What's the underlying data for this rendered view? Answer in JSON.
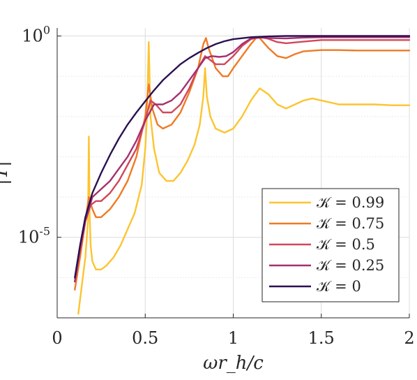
{
  "chart_data": {
    "type": "line",
    "title": "",
    "xlabel": "ωr_h/c",
    "ylabel": "|T|",
    "xlim": [
      0,
      2
    ],
    "ylim_log10": [
      -7,
      0.2
    ],
    "yscale": "log",
    "grid": true,
    "legend_placement": "bottom-right",
    "x_ticks": [
      {
        "value": 0,
        "label": "0"
      },
      {
        "value": 0.5,
        "label": "0.5"
      },
      {
        "value": 1,
        "label": "1"
      },
      {
        "value": 1.5,
        "label": "1.5"
      },
      {
        "value": 2,
        "label": "2"
      }
    ],
    "y_ticks": [
      {
        "log10": 0,
        "base": "10",
        "exp": "0"
      },
      {
        "log10": -5,
        "base": "10",
        "exp": "-5"
      }
    ],
    "series": [
      {
        "name": "𝒦 = 0.99",
        "color": "#fcc42f",
        "x": [
          0.12,
          0.14,
          0.16,
          0.175,
          0.18,
          0.185,
          0.19,
          0.2,
          0.22,
          0.25,
          0.28,
          0.32,
          0.36,
          0.4,
          0.44,
          0.48,
          0.5,
          0.51,
          0.52,
          0.53,
          0.55,
          0.58,
          0.62,
          0.66,
          0.7,
          0.74,
          0.78,
          0.81,
          0.83,
          0.84,
          0.85,
          0.87,
          0.9,
          0.95,
          1.0,
          1.05,
          1.1,
          1.15,
          1.2,
          1.25,
          1.3,
          1.35,
          1.4,
          1.45,
          1.5,
          1.6,
          1.7,
          1.8,
          1.9,
          2.0
        ],
        "y_log10": [
          -6.9,
          -6.2,
          -5.5,
          -4.6,
          -2.5,
          -4.5,
          -5.2,
          -5.6,
          -5.8,
          -5.8,
          -5.7,
          -5.5,
          -5.2,
          -4.8,
          -4.4,
          -3.7,
          -2.8,
          -2.0,
          -0.15,
          -2.0,
          -2.8,
          -3.4,
          -3.6,
          -3.6,
          -3.4,
          -3.1,
          -2.7,
          -2.2,
          -1.5,
          -0.8,
          -1.5,
          -2.0,
          -2.3,
          -2.4,
          -2.3,
          -2.0,
          -1.6,
          -1.3,
          -1.45,
          -1.7,
          -1.8,
          -1.7,
          -1.6,
          -1.55,
          -1.6,
          -1.7,
          -1.7,
          -1.7,
          -1.72,
          -1.72
        ]
      },
      {
        "name": "𝒦 = 0.75",
        "color": "#ef7a23",
        "x": [
          0.1,
          0.13,
          0.16,
          0.18,
          0.2,
          0.22,
          0.25,
          0.3,
          0.35,
          0.4,
          0.45,
          0.5,
          0.52,
          0.54,
          0.57,
          0.6,
          0.65,
          0.7,
          0.75,
          0.8,
          0.83,
          0.845,
          0.86,
          0.9,
          0.94,
          0.97,
          1.0,
          1.05,
          1.1,
          1.13,
          1.15,
          1.17,
          1.2,
          1.25,
          1.3,
          1.35,
          1.4,
          1.5,
          1.6,
          1.7,
          1.8,
          1.9,
          2.0
        ],
        "y_log10": [
          -6.3,
          -5.5,
          -4.6,
          -4.0,
          -4.3,
          -4.5,
          -4.5,
          -4.3,
          -4.0,
          -3.6,
          -3.0,
          -2.0,
          -1.2,
          -1.8,
          -2.2,
          -2.3,
          -2.2,
          -1.9,
          -1.4,
          -0.8,
          -0.2,
          -0.05,
          -0.3,
          -0.8,
          -1.0,
          -1.0,
          -0.8,
          -0.5,
          -0.2,
          -0.05,
          -0.05,
          -0.15,
          -0.3,
          -0.5,
          -0.55,
          -0.45,
          -0.38,
          -0.35,
          -0.35,
          -0.36,
          -0.36,
          -0.36,
          -0.36
        ]
      },
      {
        "name": "𝒦 = 0.5",
        "color": "#d2475b",
        "x": [
          0.1,
          0.13,
          0.16,
          0.19,
          0.22,
          0.25,
          0.3,
          0.35,
          0.4,
          0.45,
          0.5,
          0.53,
          0.56,
          0.6,
          0.65,
          0.7,
          0.75,
          0.8,
          0.84,
          0.87,
          0.9,
          0.95,
          1.0,
          1.05,
          1.1,
          1.15,
          1.2,
          1.25,
          1.3,
          1.4,
          1.5,
          1.6,
          1.8,
          2.0
        ],
        "y_log10": [
          -6.1,
          -5.3,
          -4.6,
          -4.2,
          -4.1,
          -4.1,
          -3.9,
          -3.6,
          -3.2,
          -2.8,
          -2.1,
          -1.6,
          -1.7,
          -1.9,
          -1.9,
          -1.7,
          -1.3,
          -0.8,
          -0.5,
          -0.6,
          -0.7,
          -0.7,
          -0.5,
          -0.25,
          -0.08,
          -0.02,
          -0.07,
          -0.15,
          -0.18,
          -0.14,
          -0.1,
          -0.1,
          -0.1,
          -0.1
        ]
      },
      {
        "name": "𝒦 = 0.25",
        "color": "#a4306e",
        "x": [
          0.1,
          0.13,
          0.16,
          0.2,
          0.25,
          0.3,
          0.35,
          0.4,
          0.45,
          0.5,
          0.55,
          0.6,
          0.65,
          0.7,
          0.75,
          0.8,
          0.84,
          0.88,
          0.92,
          0.96,
          1.0,
          1.05,
          1.1,
          1.15,
          1.2,
          1.3,
          1.4,
          1.5,
          1.6,
          1.8,
          2.0
        ],
        "y_log10": [
          -6.1,
          -5.3,
          -4.6,
          -4.0,
          -3.8,
          -3.6,
          -3.3,
          -3.0,
          -2.6,
          -2.1,
          -1.7,
          -1.7,
          -1.6,
          -1.4,
          -1.1,
          -0.8,
          -0.55,
          -0.5,
          -0.52,
          -0.5,
          -0.4,
          -0.2,
          -0.06,
          -0.04,
          -0.05,
          -0.06,
          -0.04,
          -0.03,
          -0.03,
          -0.03,
          -0.03
        ]
      },
      {
        "name": "𝒦 = 0",
        "color": "#2a1151",
        "x": [
          0.1,
          0.13,
          0.16,
          0.2,
          0.25,
          0.3,
          0.35,
          0.4,
          0.45,
          0.5,
          0.55,
          0.6,
          0.65,
          0.7,
          0.75,
          0.8,
          0.85,
          0.9,
          0.95,
          1.0,
          1.1,
          1.2,
          1.3,
          1.4,
          1.5,
          1.6,
          1.8,
          2.0
        ],
        "y_log10": [
          -6.0,
          -5.2,
          -4.5,
          -3.9,
          -3.4,
          -2.95,
          -2.55,
          -2.2,
          -1.9,
          -1.62,
          -1.35,
          -1.1,
          -0.9,
          -0.7,
          -0.55,
          -0.42,
          -0.3,
          -0.2,
          -0.13,
          -0.08,
          -0.03,
          -0.01,
          0.0,
          0.0,
          0.0,
          0.0,
          0.0,
          0.0
        ]
      }
    ]
  }
}
